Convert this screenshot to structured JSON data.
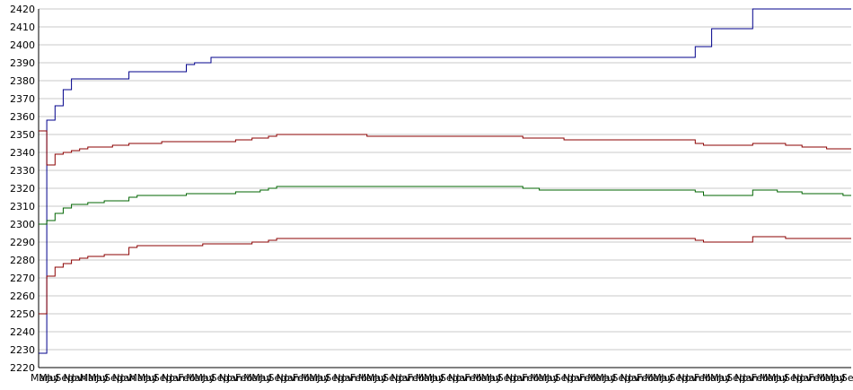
{
  "chart_data": {
    "type": "line",
    "title": "",
    "xlabel": "",
    "ylabel": "",
    "ylim": [
      2220,
      2420
    ],
    "yticks": [
      2220,
      2230,
      2240,
      2250,
      2260,
      2270,
      2280,
      2290,
      2300,
      2310,
      2320,
      2330,
      2340,
      2350,
      2360,
      2370,
      2380,
      2390,
      2400,
      2410,
      2420
    ],
    "grid": true,
    "legend": "none",
    "x_count": 100,
    "xtick_labels": [
      "Mar",
      "May",
      "Jul",
      "Sep",
      "Nov",
      "Jan",
      "Mar",
      "May",
      "Jul",
      "Sep",
      "Nov",
      "Jan",
      "Mar",
      "May",
      "Jul",
      "Sep",
      "Nov",
      "Jan",
      "Feb",
      "Mar",
      "May",
      "Jul",
      "Sep",
      "Nov",
      "Jan",
      "Feb",
      "Mar",
      "May",
      "Jul",
      "Sep",
      "Nov",
      "Jan",
      "Feb",
      "Mar",
      "May",
      "Jul",
      "Sep",
      "Nov",
      "Jan",
      "Feb",
      "Mar",
      "May",
      "Jul",
      "Sep",
      "Nov",
      "Jan",
      "Feb",
      "Mar",
      "May",
      "Jul",
      "Sep",
      "Nov",
      "Jan",
      "Feb",
      "Mar",
      "May",
      "Jul",
      "Sep",
      "Nov",
      "Jan",
      "Feb",
      "Mar",
      "May",
      "Jul",
      "Sep",
      "Nov",
      "Jan",
      "Feb",
      "Mar",
      "May",
      "Jul",
      "Sep",
      "Nov",
      "Jan",
      "Feb",
      "Mar",
      "May",
      "Jul",
      "Sep",
      "Nov",
      "Jan",
      "Feb",
      "Mar",
      "May",
      "Jul",
      "Sep",
      "Nov",
      "Jan",
      "Feb",
      "Mar",
      "May",
      "Jul",
      "Sep",
      "Nov",
      "Jan",
      "Feb",
      "Mar",
      "May",
      "Jul",
      "Sep"
    ],
    "series": [
      {
        "color": "#00008b",
        "values": [
          2228,
          2358,
          2366,
          2375,
          2381,
          2381,
          2381,
          2381,
          2381,
          2381,
          2381,
          2385,
          2385,
          2385,
          2385,
          2385,
          2385,
          2385,
          2389,
          2390,
          2390,
          2393,
          2393,
          2393,
          2393,
          2393,
          2393,
          2393,
          2393,
          2393,
          2393,
          2393,
          2393,
          2393,
          2393,
          2393,
          2393,
          2393,
          2393,
          2393,
          2393,
          2393,
          2393,
          2393,
          2393,
          2393,
          2393,
          2393,
          2393,
          2393,
          2393,
          2393,
          2393,
          2393,
          2393,
          2393,
          2393,
          2393,
          2393,
          2393,
          2393,
          2393,
          2393,
          2393,
          2393,
          2393,
          2393,
          2393,
          2393,
          2393,
          2393,
          2393,
          2393,
          2393,
          2393,
          2393,
          2393,
          2393,
          2393,
          2393,
          2399,
          2399,
          2409,
          2409,
          2409,
          2409,
          2409,
          2420,
          2420,
          2420,
          2420,
          2420,
          2420,
          2420,
          2420,
          2420,
          2420,
          2420,
          2420,
          2420
        ]
      },
      {
        "color": "#8b0000",
        "values": [
          2352,
          2333,
          2339,
          2340,
          2341,
          2342,
          2343,
          2343,
          2343,
          2344,
          2344,
          2345,
          2345,
          2345,
          2345,
          2346,
          2346,
          2346,
          2346,
          2346,
          2346,
          2346,
          2346,
          2346,
          2347,
          2347,
          2348,
          2348,
          2349,
          2350,
          2350,
          2350,
          2350,
          2350,
          2350,
          2350,
          2350,
          2350,
          2350,
          2350,
          2349,
          2349,
          2349,
          2349,
          2349,
          2349,
          2349,
          2349,
          2349,
          2349,
          2349,
          2349,
          2349,
          2349,
          2349,
          2349,
          2349,
          2349,
          2349,
          2348,
          2348,
          2348,
          2348,
          2348,
          2347,
          2347,
          2347,
          2347,
          2347,
          2347,
          2347,
          2347,
          2347,
          2347,
          2347,
          2347,
          2347,
          2347,
          2347,
          2347,
          2345,
          2344,
          2344,
          2344,
          2344,
          2344,
          2344,
          2345,
          2345,
          2345,
          2345,
          2344,
          2344,
          2343,
          2343,
          2343,
          2342,
          2342,
          2342,
          2342
        ]
      },
      {
        "color": "#006400",
        "values": [
          2300,
          2302,
          2306,
          2309,
          2311,
          2311,
          2312,
          2312,
          2313,
          2313,
          2313,
          2315,
          2316,
          2316,
          2316,
          2316,
          2316,
          2316,
          2317,
          2317,
          2317,
          2317,
          2317,
          2317,
          2318,
          2318,
          2318,
          2319,
          2320,
          2321,
          2321,
          2321,
          2321,
          2321,
          2321,
          2321,
          2321,
          2321,
          2321,
          2321,
          2321,
          2321,
          2321,
          2321,
          2321,
          2321,
          2321,
          2321,
          2321,
          2321,
          2321,
          2321,
          2321,
          2321,
          2321,
          2321,
          2321,
          2321,
          2321,
          2320,
          2320,
          2319,
          2319,
          2319,
          2319,
          2319,
          2319,
          2319,
          2319,
          2319,
          2319,
          2319,
          2319,
          2319,
          2319,
          2319,
          2319,
          2319,
          2319,
          2319,
          2318,
          2316,
          2316,
          2316,
          2316,
          2316,
          2316,
          2319,
          2319,
          2319,
          2318,
          2318,
          2318,
          2317,
          2317,
          2317,
          2317,
          2317,
          2316,
          2316
        ]
      },
      {
        "color": "#8b0000",
        "values": [
          2250,
          2271,
          2276,
          2278,
          2280,
          2281,
          2282,
          2282,
          2283,
          2283,
          2283,
          2287,
          2288,
          2288,
          2288,
          2288,
          2288,
          2288,
          2288,
          2288,
          2289,
          2289,
          2289,
          2289,
          2289,
          2289,
          2290,
          2290,
          2291,
          2292,
          2292,
          2292,
          2292,
          2292,
          2292,
          2292,
          2292,
          2292,
          2292,
          2292,
          2292,
          2292,
          2292,
          2292,
          2292,
          2292,
          2292,
          2292,
          2292,
          2292,
          2292,
          2292,
          2292,
          2292,
          2292,
          2292,
          2292,
          2292,
          2292,
          2292,
          2292,
          2292,
          2292,
          2292,
          2292,
          2292,
          2292,
          2292,
          2292,
          2292,
          2292,
          2292,
          2292,
          2292,
          2292,
          2292,
          2292,
          2292,
          2292,
          2292,
          2291,
          2290,
          2290,
          2290,
          2290,
          2290,
          2290,
          2293,
          2293,
          2293,
          2293,
          2292,
          2292,
          2292,
          2292,
          2292,
          2292,
          2292,
          2292,
          2292
        ]
      }
    ]
  }
}
